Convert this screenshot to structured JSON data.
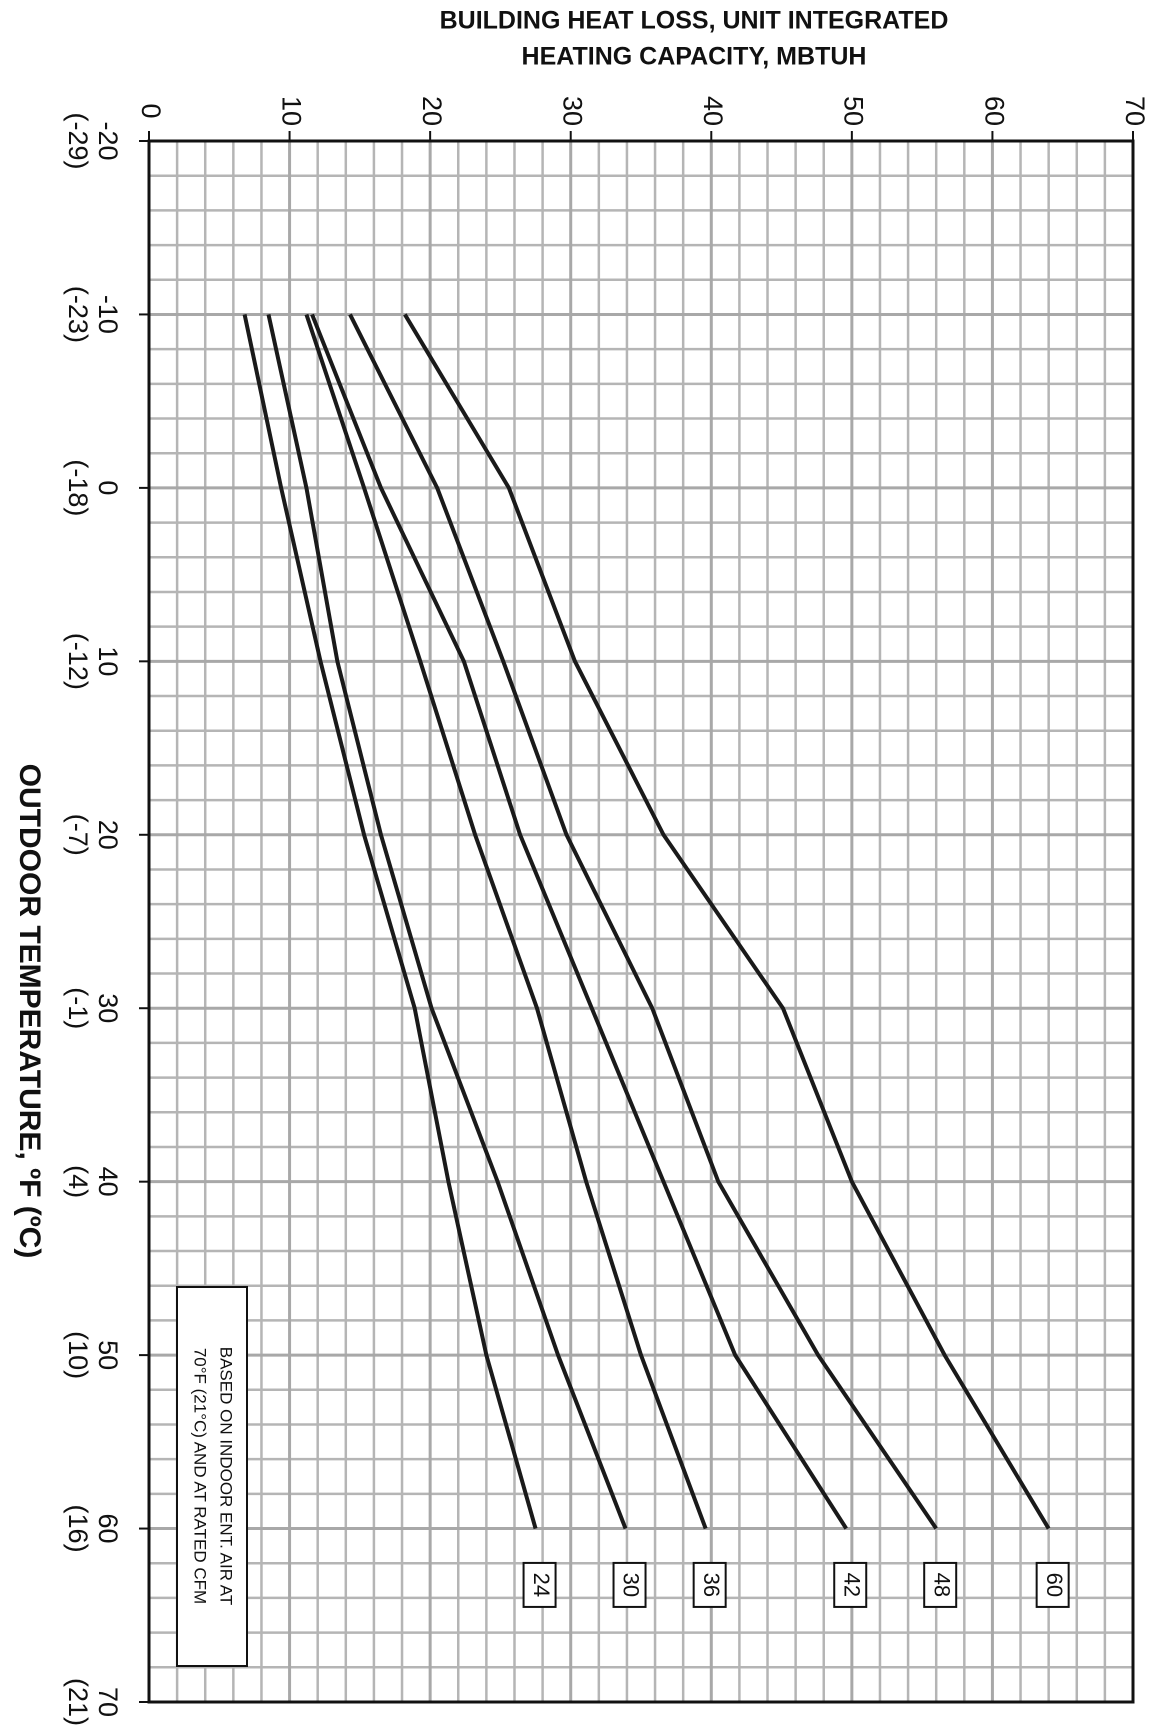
{
  "chart_data": {
    "type": "line",
    "title_lines": [
      "BUILDING HEAT LOSS, UNIT INTEGRATED",
      "HEATING CAPACITY, MBTUH"
    ],
    "x_label": "OUTDOOR TEMPERATURE, ºF (ºC)",
    "annotation_lines": [
      "BASED ON INDOOR ENT. AIR AT",
      "70°F (21°C) AND AT RATED CFM"
    ],
    "x": [
      -10,
      0,
      10,
      20,
      30,
      40,
      50,
      60
    ],
    "xlim": [
      -20,
      70
    ],
    "xticks": [
      -20,
      -10,
      0,
      10,
      20,
      30,
      40,
      50,
      60,
      70
    ],
    "xtick_celsius": [
      "(-29)",
      "(-23)",
      "(-18)",
      "(-12)",
      "(-7)",
      "(-1)",
      "(4)",
      "(10)",
      "(16)",
      "(21)"
    ],
    "ylim": [
      0,
      70
    ],
    "yticks": [
      0,
      10,
      20,
      30,
      40,
      50,
      60,
      70
    ],
    "grid": true,
    "series": [
      {
        "name": "60",
        "color": "#1a1a1a",
        "values": [
          18.2,
          25.6,
          30.3,
          36.6,
          45.1,
          50.0,
          56.6,
          64.0
        ]
      },
      {
        "name": "48",
        "color": "#1a1a1a",
        "values": [
          14.3,
          20.5,
          25.2,
          29.7,
          35.8,
          40.5,
          47.6,
          56.0
        ]
      },
      {
        "name": "42",
        "color": "#1a1a1a",
        "values": [
          11.6,
          16.5,
          22.4,
          26.4,
          31.5,
          36.6,
          41.7,
          49.6
        ]
      },
      {
        "name": "36",
        "color": "#1a1a1a",
        "values": [
          11.2,
          15.3,
          19.3,
          23.2,
          27.6,
          31.1,
          35.0,
          39.6
        ]
      },
      {
        "name": "30",
        "color": "#1a1a1a",
        "values": [
          8.5,
          11.2,
          13.4,
          16.5,
          20.1,
          24.8,
          29.1,
          33.9
        ]
      },
      {
        "name": "24",
        "color": "#1a1a1a",
        "values": [
          6.8,
          9.4,
          12.2,
          15.3,
          18.9,
          21.3,
          24.0,
          27.5
        ]
      }
    ]
  }
}
